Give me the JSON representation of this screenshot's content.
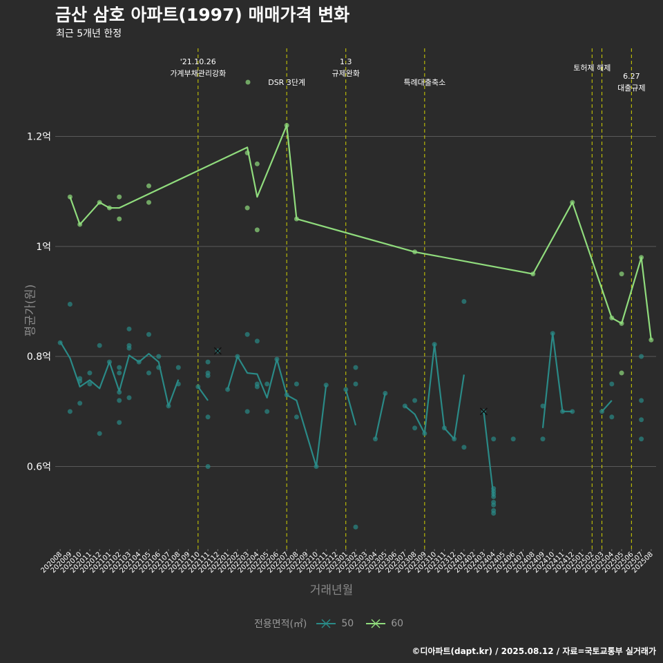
{
  "title": "금산 삼호 아파트(1997) 매매가격 변화",
  "subtitle": "최근 5개년 한정",
  "footer": "©디아파트(dapt.kr) / 2025.08.12 / 자료=국토교통부 실거래가",
  "colors": {
    "background": "#2b2b2b",
    "grid": "#5a5a5a",
    "s50": "#2a8a87",
    "s60": "#90dc7d",
    "vline": "#d4d400"
  },
  "chart_data": {
    "type": "line",
    "xlabel": "거래년월",
    "ylabel": "평균가(원)",
    "ylim": [
      0.45,
      1.36
    ],
    "y_ticks": [
      {
        "v": 0.6,
        "label": "0.6억"
      },
      {
        "v": 0.8,
        "label": "0.8억"
      },
      {
        "v": 1.0,
        "label": "1억"
      },
      {
        "v": 1.2,
        "label": "1.2억"
      }
    ],
    "x_categories": [
      "202008",
      "202009",
      "202010",
      "202011",
      "202012",
      "202101",
      "202102",
      "202103",
      "202104",
      "202105",
      "202106",
      "202107",
      "202108",
      "202109",
      "202110",
      "202111",
      "202112",
      "202201",
      "202202",
      "202203",
      "202204",
      "202205",
      "202206",
      "202207",
      "202208",
      "202209",
      "202210",
      "202211",
      "202212",
      "202301",
      "202302",
      "202303",
      "202304",
      "202305",
      "202306",
      "202307",
      "202308",
      "202309",
      "202310",
      "202311",
      "202312",
      "202401",
      "202402",
      "202403",
      "202404",
      "202405",
      "202406",
      "202407",
      "202408",
      "202409",
      "202410",
      "202411",
      "202412",
      "202501",
      "202502",
      "202503",
      "202504",
      "202505",
      "202506",
      "202507",
      "202508"
    ],
    "legend_title": "전용면적(㎡)",
    "series": [
      {
        "name": "50",
        "line": [
          [
            "202008",
            0.827
          ],
          [
            "202009",
            0.797
          ],
          [
            "202010",
            0.745
          ],
          [
            "202011",
            0.757
          ],
          [
            "202012",
            0.742
          ],
          [
            "202101",
            0.79
          ],
          [
            "202102",
            0.737
          ],
          [
            "202103",
            0.802
          ],
          [
            "202104",
            0.79
          ],
          [
            "202105",
            0.805
          ],
          [
            "202106",
            0.79
          ],
          [
            "202107",
            0.71
          ],
          [
            "202108",
            0.758
          ],
          null,
          [
            "202110",
            0.745
          ],
          [
            "202111",
            0.72
          ],
          null,
          [
            "202201",
            0.74
          ],
          [
            "202202",
            0.8
          ],
          [
            "202203",
            0.77
          ],
          [
            "202204",
            0.768
          ],
          [
            "202205",
            0.725
          ],
          [
            "202206",
            0.795
          ],
          [
            "202207",
            0.73
          ],
          [
            "202208",
            0.72
          ],
          [
            "202210",
            0.6
          ],
          [
            "202211",
            0.748
          ],
          null,
          [
            "202301",
            0.74
          ],
          [
            "202302",
            0.675
          ],
          null,
          [
            "202304",
            0.65
          ],
          [
            "202305",
            0.733
          ],
          null,
          [
            "202307",
            0.71
          ],
          [
            "202308",
            0.695
          ],
          [
            "202309",
            0.66
          ],
          [
            "202310",
            0.822
          ],
          [
            "202311",
            0.67
          ],
          [
            "202312",
            0.65
          ],
          [
            "202401",
            0.767
          ],
          null,
          [
            "202403",
            0.7
          ],
          [
            "202404",
            0.545
          ],
          null,
          [
            "202409",
            0.67
          ],
          [
            "202410",
            0.842
          ],
          [
            "202411",
            0.7
          ],
          [
            "202412",
            0.7
          ],
          null,
          [
            "202503",
            0.7
          ],
          [
            "202504",
            0.72
          ]
        ],
        "points": [
          [
            "202008",
            0.825
          ],
          [
            "202009",
            0.895
          ],
          [
            "202009",
            0.7
          ],
          [
            "202010",
            0.76
          ],
          [
            "202010",
            0.755
          ],
          [
            "202010",
            0.715
          ],
          [
            "202011",
            0.77
          ],
          [
            "202011",
            0.75
          ],
          [
            "202012",
            0.82
          ],
          [
            "202012",
            0.66
          ],
          [
            "202101",
            0.79
          ],
          [
            "202102",
            0.78
          ],
          [
            "202102",
            0.77
          ],
          [
            "202102",
            0.735
          ],
          [
            "202102",
            0.72
          ],
          [
            "202102",
            0.68
          ],
          [
            "202103",
            0.85
          ],
          [
            "202103",
            0.82
          ],
          [
            "202103",
            0.815
          ],
          [
            "202103",
            0.725
          ],
          [
            "202104",
            0.79
          ],
          [
            "202105",
            0.84
          ],
          [
            "202105",
            0.77
          ],
          [
            "202106",
            0.8
          ],
          [
            "202106",
            0.78
          ],
          [
            "202107",
            0.71
          ],
          [
            "202108",
            0.78
          ],
          [
            "202108",
            0.75
          ],
          [
            "202110",
            0.745
          ],
          [
            "202111",
            0.79
          ],
          [
            "202111",
            0.77
          ],
          [
            "202111",
            0.765
          ],
          [
            "202111",
            0.69
          ],
          [
            "202111",
            0.6
          ],
          [
            "202112",
            0.81
          ],
          [
            "202201",
            0.74
          ],
          [
            "202202",
            0.8
          ],
          [
            "202203",
            0.84
          ],
          [
            "202203",
            0.7
          ],
          [
            "202204",
            0.828
          ],
          [
            "202204",
            0.75
          ],
          [
            "202204",
            0.745
          ],
          [
            "202205",
            0.75
          ],
          [
            "202205",
            0.7
          ],
          [
            "202206",
            0.795
          ],
          [
            "202207",
            0.73
          ],
          [
            "202208",
            0.75
          ],
          [
            "202208",
            0.69
          ],
          [
            "202210",
            0.6
          ],
          [
            "202211",
            0.748
          ],
          [
            "202301",
            0.74
          ],
          [
            "202302",
            0.78
          ],
          [
            "202302",
            0.75
          ],
          [
            "202302",
            0.49
          ],
          [
            "202304",
            0.65
          ],
          [
            "202305",
            0.733
          ],
          [
            "202307",
            0.71
          ],
          [
            "202308",
            0.72
          ],
          [
            "202308",
            0.67
          ],
          [
            "202309",
            0.66
          ],
          [
            "202310",
            0.822
          ],
          [
            "202311",
            0.67
          ],
          [
            "202312",
            0.65
          ],
          [
            "202401",
            0.9
          ],
          [
            "202401",
            0.635
          ],
          [
            "202403",
            0.7
          ],
          [
            "202404",
            0.65
          ],
          [
            "202404",
            0.56
          ],
          [
            "202404",
            0.555
          ],
          [
            "202404",
            0.55
          ],
          [
            "202404",
            0.545
          ],
          [
            "202404",
            0.535
          ],
          [
            "202404",
            0.53
          ],
          [
            "202404",
            0.52
          ],
          [
            "202404",
            0.515
          ],
          [
            "202406",
            0.65
          ],
          [
            "202409",
            0.71
          ],
          [
            "202409",
            0.65
          ],
          [
            "202410",
            0.842
          ],
          [
            "202411",
            0.7
          ],
          [
            "202412",
            0.7
          ],
          [
            "202503",
            0.7
          ],
          [
            "202504",
            0.75
          ],
          [
            "202504",
            0.69
          ],
          [
            "202507",
            0.8
          ],
          [
            "202507",
            0.72
          ],
          [
            "202507",
            0.685
          ],
          [
            "202507",
            0.65
          ]
        ],
        "cancel_marks": [
          [
            "202112",
            0.81
          ],
          [
            "202403",
            0.7
          ]
        ]
      },
      {
        "name": "60",
        "line": [
          [
            "202009",
            1.09
          ],
          [
            "202010",
            1.04
          ],
          [
            "202012",
            1.08
          ],
          [
            "202101",
            1.07
          ],
          [
            "202102",
            1.07
          ],
          [
            "202203",
            1.18
          ],
          [
            "202204",
            1.09
          ],
          [
            "202207",
            1.22
          ],
          [
            "202208",
            1.05
          ],
          [
            "202308",
            0.99
          ],
          [
            "202408",
            0.95
          ],
          [
            "202412",
            1.08
          ],
          [
            "202504",
            0.87
          ],
          [
            "202505",
            0.86
          ],
          [
            "202507",
            0.98
          ],
          [
            "202508",
            0.83
          ]
        ],
        "points": [
          [
            "202009",
            1.09
          ],
          [
            "202010",
            1.04
          ],
          [
            "202012",
            1.08
          ],
          [
            "202101",
            1.07
          ],
          [
            "202102",
            1.09
          ],
          [
            "202102",
            1.05
          ],
          [
            "202105",
            1.11
          ],
          [
            "202105",
            1.08
          ],
          [
            "202203",
            1.17
          ],
          [
            "202203",
            1.07
          ],
          [
            "202204",
            1.15
          ],
          [
            "202204",
            1.03
          ],
          [
            "202207",
            1.22
          ],
          [
            "202208",
            1.05
          ],
          [
            "202308",
            0.99
          ],
          [
            "202408",
            0.95
          ],
          [
            "202412",
            1.08
          ],
          [
            "202504",
            0.87
          ],
          [
            "202505",
            0.86
          ],
          [
            "202505",
            0.95
          ],
          [
            "202505",
            0.77
          ],
          [
            "202507",
            0.98
          ],
          [
            "202508",
            0.83
          ]
        ]
      }
    ],
    "events": [
      {
        "x": "202110",
        "label": "'21.10.26\n가계부채관리강화"
      },
      {
        "x": "202207",
        "label": "DSR 3단계"
      },
      {
        "x": "202301",
        "label": "1.3\n규제완화"
      },
      {
        "x": "202309",
        "label": "특례대출축소"
      },
      {
        "x": "202502",
        "label": "토허제 해제"
      },
      {
        "x": "202503",
        "label": ""
      },
      {
        "x": "202506",
        "label": "6.27\n대출규제"
      }
    ]
  }
}
